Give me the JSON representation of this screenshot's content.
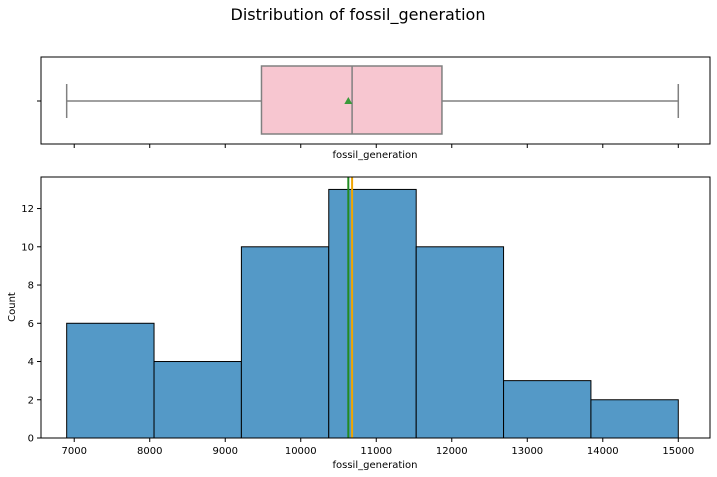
{
  "chart_data": [
    {
      "type": "box",
      "title": "Distribution of fossil_generation",
      "xlabel": "fossil_generation",
      "xlim": [
        6560,
        15420
      ],
      "box": {
        "whisker_low": 6900,
        "q1": 9480,
        "median": 10680,
        "q3": 11870,
        "whisker_high": 15000,
        "mean": 10630
      },
      "colors": {
        "box_fill": "#f7c6d0",
        "box_edge": "#808080",
        "mean_marker": "#3a9a3a"
      }
    },
    {
      "type": "histogram",
      "xlabel": "fossil_generation",
      "ylabel": "Count",
      "xlim": [
        6560,
        15420
      ],
      "ylim": [
        0,
        13.65
      ],
      "x_ticks": [
        7000,
        8000,
        9000,
        10000,
        11000,
        12000,
        13000,
        14000,
        15000
      ],
      "y_ticks": [
        0,
        2,
        4,
        6,
        8,
        10,
        12
      ],
      "bins": [
        {
          "start": 6900,
          "end": 8057,
          "count": 6
        },
        {
          "start": 8057,
          "end": 9214,
          "count": 4
        },
        {
          "start": 9214,
          "end": 10371,
          "count": 10
        },
        {
          "start": 10371,
          "end": 11529,
          "count": 13
        },
        {
          "start": 11529,
          "end": 12686,
          "count": 10
        },
        {
          "start": 12686,
          "end": 13843,
          "count": 3
        },
        {
          "start": 13843,
          "end": 15000,
          "count": 2
        }
      ],
      "mean": 10630,
      "median": 10680,
      "colors": {
        "bar_fill": "#5499c7",
        "bar_edge": "#000000",
        "mean_line": "#228b22",
        "median_line": "#f0a500"
      }
    }
  ]
}
